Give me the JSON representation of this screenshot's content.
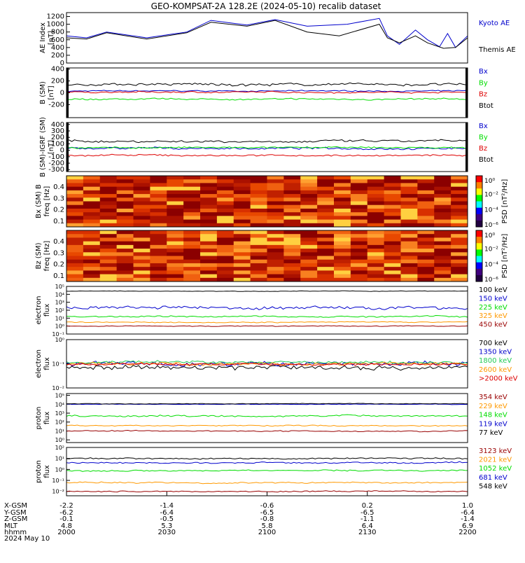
{
  "title": "GEO-KOMPSAT-2A 128.2E (2024-05-10) recalib dataset",
  "colors": {
    "black": "#000000",
    "blue": "#0000cc",
    "green": "#00dd00",
    "red": "#dd0000",
    "orange": "#ff9900",
    "darkred": "#990000",
    "limegreen": "#22cc55"
  },
  "time_axis": {
    "row_labels": [
      "X-GSM",
      "Y-GSM",
      "Z-GSM",
      "MLT",
      "hhmm",
      "2024 May 10"
    ],
    "columns": [
      {
        "x": "-2.2",
        "y": "-6.2",
        "z": "-0.1",
        "mlt": "4.8",
        "hhmm": "2000"
      },
      {
        "x": "-1.4",
        "y": "-6.4",
        "z": "-0.5",
        "mlt": "5.3",
        "hhmm": "2030"
      },
      {
        "x": "-0.6",
        "y": "-6.5",
        "z": "-0.8",
        "mlt": "5.8",
        "hhmm": "2100"
      },
      {
        "x": "0.2",
        "y": "-6.5",
        "z": "-1.1",
        "mlt": "6.4",
        "hhmm": "2130"
      },
      {
        "x": "1.0",
        "y": "-6.4",
        "z": "-1.4",
        "mlt": "6.9",
        "hhmm": "2200"
      }
    ]
  },
  "chart_data": [
    {
      "type": "line",
      "id": "ae",
      "ylabel": "AE Index",
      "unit": "[nT]",
      "yticks": [
        "0",
        "200",
        "400",
        "600",
        "800",
        "1000",
        "1200"
      ],
      "ylim": [
        0,
        1300
      ],
      "series": [
        {
          "name": "Kyoto AE",
          "color": "blue",
          "x": [
            0,
            0.05,
            0.1,
            0.2,
            0.3,
            0.36,
            0.45,
            0.52,
            0.6,
            0.7,
            0.78,
            0.8,
            0.83,
            0.87,
            0.9,
            0.93,
            0.95,
            0.97,
            1.0
          ],
          "y": [
            700,
            650,
            800,
            650,
            800,
            1100,
            980,
            1120,
            950,
            1000,
            1150,
            700,
            480,
            850,
            600,
            420,
            760,
            400,
            700
          ]
        },
        {
          "name": "Themis AE",
          "color": "black",
          "x": [
            0,
            0.05,
            0.1,
            0.2,
            0.3,
            0.36,
            0.45,
            0.52,
            0.6,
            0.68,
            0.78,
            0.8,
            0.83,
            0.87,
            0.9,
            0.94,
            0.97,
            1.0
          ],
          "y": [
            650,
            620,
            780,
            620,
            780,
            1050,
            950,
            1100,
            800,
            700,
            1000,
            650,
            520,
            700,
            520,
            380,
            400,
            650
          ]
        }
      ]
    },
    {
      "type": "line",
      "id": "bsm",
      "ylabel": "B (SM)",
      "unit": "[nT]",
      "yticks": [
        "-200",
        "0",
        "200",
        "400"
      ],
      "ylim": [
        -420,
        420
      ],
      "series": [
        {
          "name": "Bx",
          "color": "blue",
          "base": 30,
          "noise": 15
        },
        {
          "name": "By",
          "color": "green",
          "base": -110,
          "noise": 20
        },
        {
          "name": "Bz",
          "color": "red",
          "base": 10,
          "noise": 20
        },
        {
          "name": "Btot",
          "color": "black",
          "base": 140,
          "noise": 35
        }
      ]
    },
    {
      "type": "line",
      "id": "bdiff",
      "ylabel": "B (SM)-IGRF (SM)",
      "unit": "[nT]",
      "yticks": [
        "-300",
        "-200",
        "-100",
        "0",
        "100",
        "200",
        "300",
        "400"
      ],
      "ylim": [
        -330,
        430
      ],
      "series": [
        {
          "name": "Bx",
          "color": "blue",
          "base": 30,
          "noise": 25
        },
        {
          "name": "By",
          "color": "green",
          "base": 40,
          "noise": 20
        },
        {
          "name": "Bz",
          "color": "red",
          "base": -80,
          "noise": 20
        },
        {
          "name": "Btot",
          "color": "black",
          "base": 140,
          "noise": 30
        }
      ]
    },
    {
      "type": "heatmap",
      "id": "bx_psd",
      "ylabel": "Bx (SM) B",
      "sublabel": "freq [Hz]",
      "yticks": [
        "0.1",
        "0.2",
        "0.3",
        "0.4"
      ],
      "ylim": [
        0.05,
        0.5
      ],
      "colorbar": {
        "label": "PSD [nT²/Hz]",
        "ticks": [
          "10⁰",
          "10⁻²",
          "10⁻⁴",
          "10⁻⁶"
        ]
      }
    },
    {
      "type": "heatmap",
      "id": "bz_psd",
      "ylabel": "Bz (SM)",
      "sublabel": "freq [Hz]",
      "yticks": [
        "0.1",
        "0.2",
        "0.3",
        "0.4"
      ],
      "ylim": [
        0.05,
        0.5
      ],
      "colorbar": {
        "label": "PSD [nT²/Hz]",
        "ticks": [
          "10⁰",
          "10⁻²",
          "10⁻⁴",
          "10⁻⁶"
        ]
      }
    },
    {
      "type": "line",
      "id": "e_low",
      "ylabel": "electron",
      "sublabel": "flux",
      "log": true,
      "yticks": [
        "10⁻¹",
        "10⁰",
        "10¹",
        "10²",
        "10³",
        "10⁴",
        "10⁵"
      ],
      "ylim": [
        -1,
        5
      ],
      "series": [
        {
          "name": "100 keV",
          "color": "black",
          "base": 4.4,
          "noise": 0.05
        },
        {
          "name": "150 keV",
          "color": "blue",
          "base": 2.3,
          "noise": 0.3
        },
        {
          "name": "225 keV",
          "color": "green",
          "base": 1.2,
          "noise": 0.15
        },
        {
          "name": "325 keV",
          "color": "orange",
          "base": 0.5,
          "noise": 0.1
        },
        {
          "name": "450 keV",
          "color": "darkred",
          "base": 0.0,
          "noise": 0.08
        }
      ]
    },
    {
      "type": "line",
      "id": "e_high",
      "ylabel": "electron",
      "sublabel": "flux",
      "log": true,
      "yticks": [
        "10⁻²",
        "10⁻¹",
        "10⁰"
      ],
      "ylim": [
        -2,
        0
      ],
      "series": [
        {
          "name": "700 keV",
          "color": "black",
          "base": -1.15,
          "noise": 0.15
        },
        {
          "name": "1350 keV",
          "color": "blue",
          "base": -1.0,
          "noise": 0.15
        },
        {
          "name": "1800 keV",
          "color": "limegreen",
          "base": -0.95,
          "noise": 0.1
        },
        {
          "name": "2600 keV",
          "color": "orange",
          "base": -1.0,
          "noise": 0.1
        },
        {
          "name": ">2000 keV",
          "color": "red",
          "base": -1.02,
          "noise": 0.08
        }
      ]
    },
    {
      "type": "line",
      "id": "p_low",
      "ylabel": "proton",
      "sublabel": "flux",
      "log": true,
      "yticks": [
        "10⁰",
        "10¹",
        "10²",
        "10³",
        "10⁴",
        "10⁵"
      ],
      "ylim": [
        -0.3,
        5.2
      ],
      "series": [
        {
          "name": "354 keV",
          "color": "darkred",
          "base": 1.0,
          "noise": 0.1
        },
        {
          "name": "229 keV",
          "color": "orange",
          "base": 1.6,
          "noise": 0.1
        },
        {
          "name": "148 keV",
          "color": "green",
          "base": 2.7,
          "noise": 0.15
        },
        {
          "name": "119 keV",
          "color": "blue",
          "base": 4.0,
          "noise": 0.05
        },
        {
          "name": "77 keV",
          "color": "black",
          "base": 4.05,
          "noise": 0.05
        }
      ]
    },
    {
      "type": "line",
      "id": "p_high",
      "ylabel": "proton",
      "sublabel": "flux",
      "log": true,
      "yticks": [
        "10⁻²",
        "10⁻¹",
        "10⁰",
        "10¹",
        "10²"
      ],
      "ylim": [
        -2.4,
        2
      ],
      "series": [
        {
          "name": "3123 keV",
          "color": "darkred",
          "base": -2.0,
          "noise": 0.08
        },
        {
          "name": "2021 keV",
          "color": "orange",
          "base": -1.2,
          "noise": 0.1
        },
        {
          "name": "1052 keV",
          "color": "green",
          "base": -0.1,
          "noise": 0.1
        },
        {
          "name": "681 keV",
          "color": "blue",
          "base": 0.6,
          "noise": 0.1
        },
        {
          "name": "548 keV",
          "color": "black",
          "base": 1.0,
          "noise": 0.1
        }
      ]
    }
  ]
}
